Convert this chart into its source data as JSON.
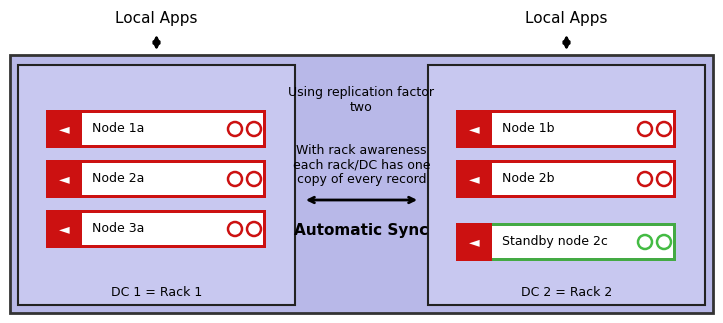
{
  "bg_color": "#ffffff",
  "outer_facecolor": "#b8b8e8",
  "outer_edgecolor": "#333333",
  "dc_facecolor": "#c8c8f0",
  "dc_edgecolor": "#222222",
  "node_red": "#cc1111",
  "node_red_dark": "#aa0000",
  "node_border_normal": "#cc1111",
  "node_border_standby": "#44aa44",
  "node_circle_normal": "#cc1111",
  "node_circle_standby": "#44bb44",
  "local_apps": "Local Apps",
  "dc1_label": "DC 1 = Rack 1",
  "dc2_label": "DC 2 = Rack 2",
  "nodes_dc1": [
    "Node 1a",
    "Node 2a",
    "Node 3a"
  ],
  "nodes_dc2": [
    "Node 1b",
    "Node 2b"
  ],
  "node_standby": "Standby node 2c",
  "center_text1": "Using replication factor\ntwo",
  "center_text2": "With rack awareness\neach rack/DC has one\ncopy of every record",
  "center_text3": "Automatic Sync",
  "fig_w": 7.23,
  "fig_h": 3.23,
  "dpi": 100
}
